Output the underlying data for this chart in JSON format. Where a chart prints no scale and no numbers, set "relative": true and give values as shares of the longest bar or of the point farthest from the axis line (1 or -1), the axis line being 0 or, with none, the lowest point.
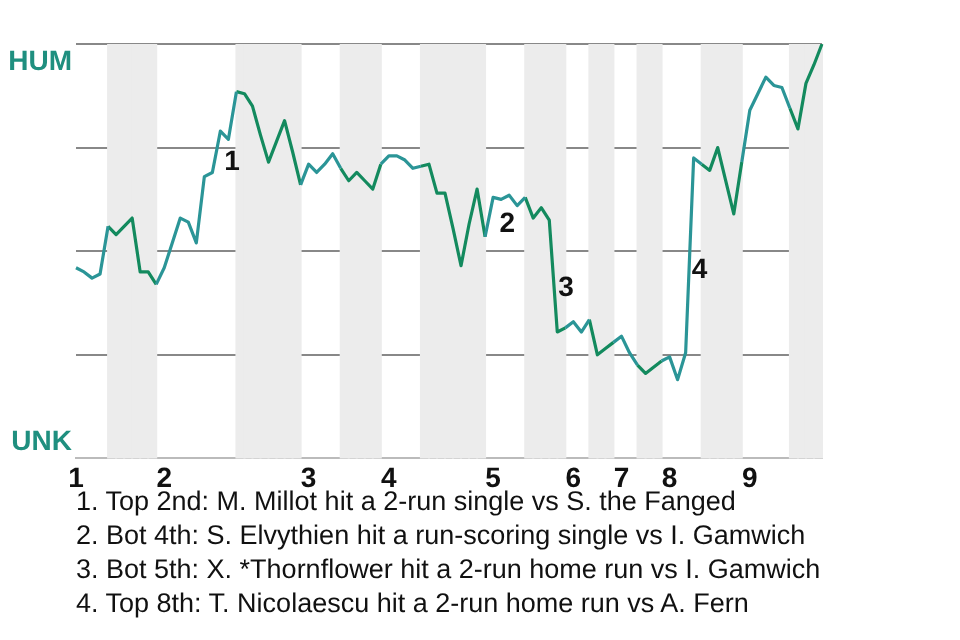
{
  "chart_data": {
    "type": "line",
    "relative": true,
    "categories": [
      "1",
      null,
      null,
      null,
      null,
      null,
      null,
      null,
      null,
      null,
      null,
      "2",
      null,
      null,
      null,
      null,
      null,
      null,
      null,
      null,
      null,
      null,
      null,
      null,
      null,
      null,
      null,
      null,
      null,
      "3",
      null,
      null,
      null,
      null,
      null,
      null,
      null,
      null,
      null,
      "4",
      null,
      null,
      null,
      null,
      null,
      null,
      null,
      null,
      null,
      null,
      null,
      null,
      "5",
      null,
      null,
      null,
      null,
      null,
      null,
      null,
      null,
      null,
      "6",
      null,
      null,
      null,
      null,
      null,
      "7",
      null,
      null,
      null,
      null,
      null,
      "8",
      null,
      null,
      null,
      null,
      null,
      null,
      null,
      null,
      null,
      "9",
      null,
      null,
      null,
      null,
      null,
      null,
      null,
      null,
      null
    ],
    "series": [
      {
        "color": "#2b9597",
        "values": [
          0.46,
          0.45,
          0.435,
          0.445,
          0.56,
          null,
          null,
          null,
          null,
          null,
          0.42,
          0.46,
          0.52,
          0.58,
          0.57,
          0.52,
          0.68,
          0.69,
          0.79,
          0.77,
          0.885,
          null,
          null,
          null,
          null,
          null,
          null,
          null,
          0.66,
          0.71,
          0.69,
          0.71,
          0.735,
          0.7,
          null,
          null,
          null,
          null,
          0.71,
          0.73,
          0.73,
          0.72,
          0.7,
          0.705,
          null,
          null,
          null,
          null,
          null,
          null,
          null,
          0.535,
          0.63,
          0.625,
          0.635,
          0.61,
          0.63,
          null,
          null,
          null,
          null,
          0.315,
          0.33,
          0.305,
          0.335,
          null,
          null,
          0.28,
          0.295,
          0.255,
          0.225,
          null,
          null,
          0.235,
          0.245,
          0.19,
          0.255,
          0.725,
          0.71,
          null,
          null,
          null,
          null,
          0.715,
          0.84,
          0.88,
          0.92,
          0.9,
          0.895,
          0.845,
          null,
          null,
          null,
          null
        ]
      },
      {
        "color": "#138a5e",
        "values": [
          null,
          null,
          null,
          null,
          0.56,
          0.54,
          0.56,
          0.58,
          0.45,
          0.45,
          0.42,
          null,
          null,
          null,
          null,
          null,
          null,
          null,
          null,
          null,
          0.885,
          0.88,
          0.85,
          0.78,
          0.715,
          0.765,
          0.815,
          0.74,
          0.66,
          null,
          null,
          null,
          null,
          0.7,
          0.67,
          0.69,
          0.67,
          0.65,
          0.71,
          null,
          null,
          null,
          null,
          0.705,
          0.71,
          0.64,
          0.64,
          0.555,
          0.465,
          0.565,
          0.65,
          0.535,
          null,
          null,
          null,
          null,
          0.63,
          0.58,
          0.605,
          0.575,
          0.305,
          0.315,
          null,
          null,
          0.335,
          0.25,
          0.265,
          0.28,
          null,
          null,
          0.225,
          0.205,
          0.22,
          0.235,
          null,
          null,
          null,
          null,
          0.71,
          0.695,
          0.75,
          0.67,
          0.59,
          0.715,
          null,
          null,
          null,
          null,
          null,
          0.845,
          0.795,
          0.905,
          0.95,
          1
        ]
      }
    ],
    "grid": "y",
    "legend": false,
    "marker": "none",
    "line_style": "solid",
    "annotations": [
      "HUM",
      "UNK",
      "1",
      "2",
      "3",
      "4",
      "1. Top 2nd: M. Millot hit a 2-run single vs S. the Fanged",
      "2. Bot 4th: S. Elvythien hit a run-scoring single vs I. Gamwich",
      "3. Bot 5th: X. *Thornflower hit a 2-run home run vs I. Gamwich",
      "4. Top 8th: T. Nicolaescu hit a 2-run home run vs A. Fern"
    ]
  }
}
